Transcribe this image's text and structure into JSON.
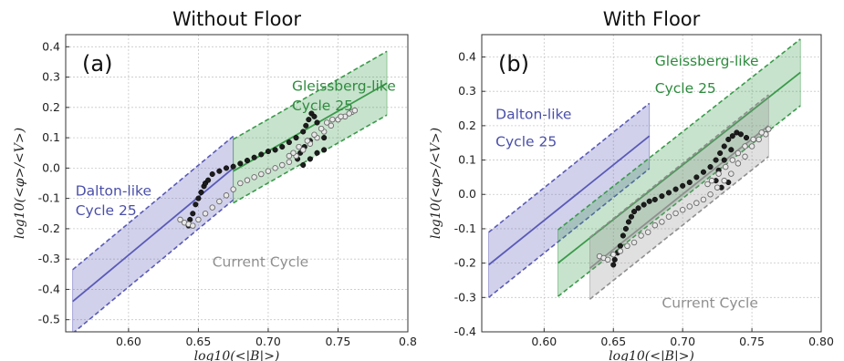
{
  "chart_data": [
    {
      "type": "line",
      "title": "Without Floor",
      "panel_label": "(a)",
      "xlabel": "log10(<|B|>)",
      "ylabel": "log10(<φ>/<V>)",
      "xlim": [
        0.555,
        0.8
      ],
      "ylim": [
        -0.54,
        0.44
      ],
      "xticks": [
        "0.60",
        "0.65",
        "0.70",
        "0.75",
        "0.8"
      ],
      "xtick_values": [
        0.6,
        0.65,
        0.7,
        0.75,
        0.8
      ],
      "yticks": [
        "-0.5",
        "-0.4",
        "-0.3",
        "-0.2",
        "-0.1",
        "0.0",
        "0.1",
        "0.2",
        "0.3",
        "0.4"
      ],
      "ytick_values": [
        -0.5,
        -0.4,
        -0.3,
        -0.2,
        -0.1,
        0.0,
        0.1,
        0.2,
        0.3,
        0.4
      ],
      "grid": true,
      "annotations": [
        {
          "text": "Dalton-like",
          "x": 0.562,
          "y": -0.09,
          "color": "#4a4faa"
        },
        {
          "text": "Cycle 25",
          "x": 0.562,
          "y": -0.155,
          "color": "#4a4faa"
        },
        {
          "text": "Gleissberg-like",
          "x": 0.717,
          "y": 0.255,
          "color": "#2e8b3e"
        },
        {
          "text": "Cycle 25",
          "x": 0.717,
          "y": 0.19,
          "color": "#2e8b3e"
        },
        {
          "text": "Current Cycle",
          "x": 0.66,
          "y": -0.325,
          "color": "#8f8f8f"
        }
      ],
      "bands": [
        {
          "name": "Dalton-like Cycle 25",
          "color": "#5a5ab8",
          "x": [
            0.56,
            0.675
          ],
          "center": [
            -0.44,
            0.0
          ],
          "width": 0.105
        },
        {
          "name": "Gleissberg-like Cycle 25",
          "color": "#3a9a4a",
          "x": [
            0.675,
            0.785
          ],
          "center": [
            -0.01,
            0.28
          ],
          "width": 0.105
        }
      ],
      "series": [
        {
          "marker": "filled",
          "color": "#1c1c1c",
          "x": [
            0.643,
            0.644,
            0.646,
            0.648,
            0.65,
            0.652,
            0.654,
            0.655,
            0.657,
            0.66,
            0.665,
            0.67,
            0.675,
            0.68,
            0.685,
            0.69,
            0.695,
            0.7,
            0.705,
            0.71,
            0.715,
            0.72,
            0.725,
            0.727,
            0.729,
            0.731,
            0.733,
            0.735,
            0.738,
            0.74,
            0.73,
            0.726,
            0.723,
            0.721,
            0.725,
            0.73,
            0.735,
            0.74
          ],
          "y": [
            -0.19,
            -0.17,
            -0.15,
            -0.12,
            -0.1,
            -0.08,
            -0.06,
            -0.05,
            -0.04,
            -0.02,
            -0.01,
            0.0,
            0.005,
            0.015,
            0.025,
            0.035,
            0.045,
            0.055,
            0.06,
            0.07,
            0.085,
            0.1,
            0.12,
            0.14,
            0.16,
            0.18,
            0.17,
            0.15,
            0.13,
            0.1,
            0.09,
            0.07,
            0.05,
            0.03,
            0.01,
            0.03,
            0.05,
            0.06
          ]
        },
        {
          "marker": "hollow",
          "color": "#6a6a6a",
          "x": [
            0.637,
            0.64,
            0.643,
            0.646,
            0.65,
            0.655,
            0.66,
            0.665,
            0.67,
            0.675,
            0.68,
            0.685,
            0.69,
            0.695,
            0.7,
            0.705,
            0.71,
            0.715,
            0.72,
            0.725,
            0.73,
            0.735,
            0.74,
            0.745,
            0.75,
            0.755,
            0.76,
            0.762,
            0.758,
            0.752,
            0.746,
            0.742,
            0.738,
            0.733,
            0.728,
            0.722,
            0.718,
            0.715
          ],
          "y": [
            -0.17,
            -0.18,
            -0.185,
            -0.19,
            -0.17,
            -0.15,
            -0.13,
            -0.11,
            -0.09,
            -0.07,
            -0.05,
            -0.04,
            -0.03,
            -0.02,
            -0.01,
            0.0,
            0.01,
            0.02,
            0.04,
            0.06,
            0.08,
            0.1,
            0.12,
            0.14,
            0.16,
            0.17,
            0.185,
            0.19,
            0.18,
            0.17,
            0.16,
            0.15,
            0.13,
            0.11,
            0.09,
            0.07,
            0.05,
            0.04
          ]
        }
      ]
    },
    {
      "type": "line",
      "title": "With Floor",
      "panel_label": "(b)",
      "xlabel": "log10(<|B|>)",
      "ylabel": "log10(<φ>/<V>)",
      "xlim": [
        0.555,
        0.8
      ],
      "ylim": [
        -0.4,
        0.465
      ],
      "xticks": [
        "0.60",
        "0.65",
        "0.70",
        "0.75",
        "0.80"
      ],
      "xtick_values": [
        0.6,
        0.65,
        0.7,
        0.75,
        0.8
      ],
      "yticks": [
        "-0.4",
        "-0.3",
        "-0.2",
        "-0.1",
        "0.0",
        "0.1",
        "0.2",
        "0.3",
        "0.4"
      ],
      "ytick_values": [
        -0.4,
        -0.3,
        -0.2,
        -0.1,
        0.0,
        0.1,
        0.2,
        0.3,
        0.4
      ],
      "grid": true,
      "annotations": [
        {
          "text": "Dalton-like",
          "x": 0.565,
          "y": 0.22,
          "color": "#4a4faa"
        },
        {
          "text": "Cycle 25",
          "x": 0.565,
          "y": 0.14,
          "color": "#4a4faa"
        },
        {
          "text": "Gleissberg-like",
          "x": 0.68,
          "y": 0.375,
          "color": "#2e8b3e"
        },
        {
          "text": "Cycle 25",
          "x": 0.68,
          "y": 0.295,
          "color": "#2e8b3e"
        },
        {
          "text": "Current Cycle",
          "x": 0.685,
          "y": -0.33,
          "color": "#8f8f8f"
        }
      ],
      "bands": [
        {
          "name": "Dalton-like Cycle 25",
          "color": "#5a5ab8",
          "x": [
            0.56,
            0.676
          ],
          "center": [
            -0.205,
            0.17
          ],
          "width": 0.095
        },
        {
          "name": "Gleissberg-like Cycle 25",
          "color": "#3a9a4a",
          "x": [
            0.61,
            0.785
          ],
          "center": [
            -0.2,
            0.355
          ],
          "width": 0.097
        },
        {
          "name": "Current Cycle",
          "color": "#8f8f8f",
          "x": [
            0.633,
            0.762
          ],
          "center": [
            -0.215,
            0.2
          ],
          "width": 0.09
        }
      ],
      "series": [
        {
          "marker": "filled",
          "color": "#1c1c1c",
          "x": [
            0.65,
            0.651,
            0.653,
            0.655,
            0.657,
            0.659,
            0.661,
            0.663,
            0.665,
            0.668,
            0.672,
            0.676,
            0.68,
            0.685,
            0.69,
            0.695,
            0.7,
            0.705,
            0.71,
            0.715,
            0.72,
            0.724,
            0.727,
            0.73,
            0.733,
            0.736,
            0.739,
            0.742,
            0.746,
            0.735,
            0.73,
            0.726,
            0.724,
            0.728,
            0.733
          ],
          "y": [
            -0.205,
            -0.19,
            -0.17,
            -0.15,
            -0.12,
            -0.1,
            -0.08,
            -0.065,
            -0.05,
            -0.04,
            -0.03,
            -0.02,
            -0.015,
            -0.005,
            0.005,
            0.015,
            0.025,
            0.035,
            0.05,
            0.065,
            0.08,
            0.1,
            0.12,
            0.14,
            0.16,
            0.17,
            0.18,
            0.175,
            0.165,
            0.13,
            0.1,
            0.07,
            0.04,
            0.02,
            0.035
          ]
        },
        {
          "marker": "hollow",
          "color": "#6a6a6a",
          "x": [
            0.64,
            0.643,
            0.646,
            0.65,
            0.655,
            0.66,
            0.665,
            0.67,
            0.675,
            0.68,
            0.685,
            0.69,
            0.695,
            0.7,
            0.705,
            0.71,
            0.715,
            0.72,
            0.725,
            0.73,
            0.735,
            0.74,
            0.745,
            0.75,
            0.755,
            0.76,
            0.762,
            0.757,
            0.751,
            0.745,
            0.74,
            0.736,
            0.731,
            0.726,
            0.721,
            0.718
          ],
          "y": [
            -0.18,
            -0.185,
            -0.19,
            -0.175,
            -0.165,
            -0.15,
            -0.14,
            -0.12,
            -0.11,
            -0.09,
            -0.08,
            -0.065,
            -0.055,
            -0.045,
            -0.035,
            -0.025,
            -0.015,
            0.0,
            0.02,
            0.04,
            0.06,
            0.09,
            0.11,
            0.14,
            0.16,
            0.175,
            0.19,
            0.18,
            0.16,
            0.14,
            0.12,
            0.1,
            0.08,
            0.06,
            0.04,
            0.03
          ]
        }
      ]
    }
  ]
}
